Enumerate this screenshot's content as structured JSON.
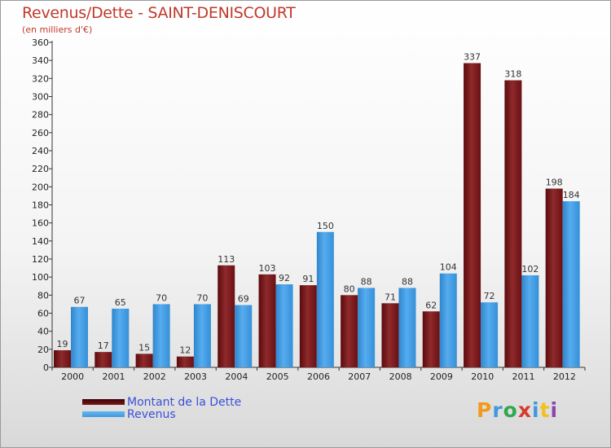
{
  "title": "Revenus/Dette - SAINT-DENISCOURT",
  "subtitle": "(en milliers d'€)",
  "colors": {
    "dette": "#7a1518",
    "revenus": "#3d99de",
    "title": "#c0392b",
    "legend_text": "#3a4fd8"
  },
  "legend": [
    {
      "label": "Montant de la Dette",
      "color": "#7a1518"
    },
    {
      "label": "Revenus",
      "color": "#3d99de"
    }
  ],
  "logo": {
    "letters": [
      "P",
      "r",
      "o",
      "x",
      "i",
      "t",
      "i"
    ],
    "colors": [
      "#f29a1f",
      "#3d99de",
      "#2fa84f",
      "#d6392f",
      "#3d99de",
      "#f2c01f",
      "#8e44ad"
    ]
  },
  "chart_data": {
    "type": "bar",
    "categories": [
      "2000",
      "2001",
      "2002",
      "2003",
      "2004",
      "2005",
      "2006",
      "2007",
      "2008",
      "2009",
      "2010",
      "2011",
      "2012"
    ],
    "series": [
      {
        "name": "Montant de la Dette",
        "values": [
          19,
          17,
          15,
          12,
          113,
          103,
          91,
          80,
          71,
          62,
          337,
          318,
          198
        ]
      },
      {
        "name": "Revenus",
        "values": [
          67,
          65,
          70,
          70,
          69,
          92,
          150,
          88,
          88,
          104,
          72,
          102,
          184
        ]
      }
    ],
    "yticks": [
      0,
      20,
      40,
      60,
      80,
      100,
      120,
      140,
      160,
      180,
      200,
      220,
      240,
      260,
      280,
      300,
      320,
      340,
      360
    ],
    "ylim": [
      0,
      360
    ],
    "grid": false,
    "legend_position": "bottom-left"
  }
}
